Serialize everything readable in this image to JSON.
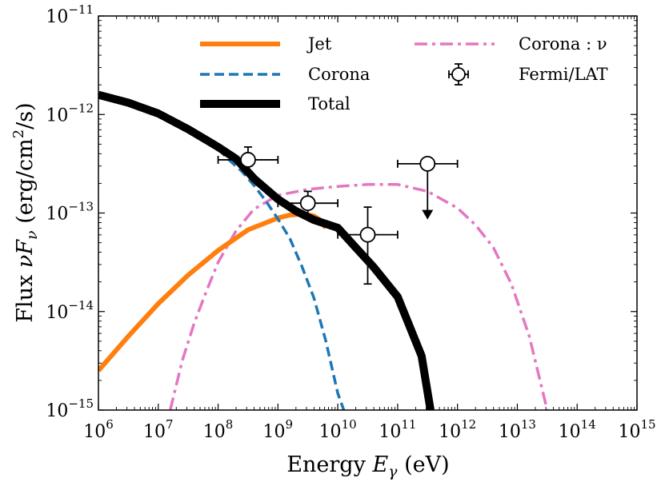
{
  "chart_data": {
    "type": "line",
    "title": "",
    "xlabel": "Energy E_γ (eV)",
    "xlabel_parts": {
      "pre": "Energy ",
      "sym": "E",
      "sub": "γ",
      "post": " (eV)"
    },
    "ylabel": "Flux νF_ν (erg/cm²/s)",
    "ylabel_parts": {
      "pre": "Flux ",
      "sym": "νF",
      "sub": "ν",
      "post": " (erg/cm",
      "sup": "2",
      "post2": "/s)"
    },
    "xscale": "log",
    "yscale": "log",
    "xlim": [
      1000000.0,
      1000000000000000.0
    ],
    "ylim": [
      1e-15,
      1e-11
    ],
    "x_ticks": [
      6,
      7,
      8,
      9,
      10,
      11,
      12,
      13,
      14,
      15
    ],
    "x_tick_labels": [
      {
        "base": "10",
        "exp": "6"
      },
      {
        "base": "10",
        "exp": "7"
      },
      {
        "base": "10",
        "exp": "8"
      },
      {
        "base": "10",
        "exp": "9"
      },
      {
        "base": "10",
        "exp": "10"
      },
      {
        "base": "10",
        "exp": "11"
      },
      {
        "base": "10",
        "exp": "12"
      },
      {
        "base": "10",
        "exp": "13"
      },
      {
        "base": "10",
        "exp": "14"
      },
      {
        "base": "10",
        "exp": "15"
      }
    ],
    "y_ticks": [
      -15,
      -14,
      -13,
      -12,
      -11
    ],
    "y_tick_labels": [
      {
        "base": "10",
        "exp": "−15"
      },
      {
        "base": "10",
        "exp": "−14"
      },
      {
        "base": "10",
        "exp": "−13"
      },
      {
        "base": "10",
        "exp": "−12"
      },
      {
        "base": "10",
        "exp": "−11"
      }
    ],
    "grid": false,
    "legend_position": "top",
    "legend": [
      {
        "key": "jet",
        "label": "Jet"
      },
      {
        "key": "corona",
        "label": "Corona"
      },
      {
        "key": "total",
        "label": "Total"
      },
      {
        "key": "nu",
        "label": "Corona : ν"
      },
      {
        "key": "fermi",
        "label": "Fermi/LAT"
      }
    ],
    "series": [
      {
        "name": "Jet",
        "key": "jet",
        "color": "#ff7f0e",
        "style": "solid",
        "log_x": [
          6.0,
          6.5,
          7.0,
          7.5,
          8.0,
          8.5,
          9.0,
          9.2,
          9.4,
          9.6,
          9.7,
          9.8
        ],
        "log_y": [
          -14.6,
          -14.25,
          -13.92,
          -13.63,
          -13.38,
          -13.17,
          -13.05,
          -13.02,
          -13.01,
          -13.03,
          -13.07,
          -13.15
        ]
      },
      {
        "name": "Corona",
        "key": "corona",
        "color": "#1f77b4",
        "style": "dashed",
        "log_x": [
          8.0,
          8.2,
          8.4,
          8.6,
          8.8,
          9.0,
          9.2,
          9.4,
          9.6,
          9.8,
          10.0,
          10.1
        ],
        "log_y": [
          -12.35,
          -12.47,
          -12.58,
          -12.72,
          -12.88,
          -13.06,
          -13.26,
          -13.54,
          -13.86,
          -14.3,
          -14.83,
          -15.0
        ]
      },
      {
        "name": "Total",
        "key": "total",
        "color": "#000000",
        "style": "solid",
        "log_x": [
          6.0,
          6.5,
          7.0,
          7.5,
          8.0,
          8.3,
          8.6,
          9.0,
          9.3,
          9.6,
          10.0,
          10.3,
          10.6,
          11.0,
          11.4,
          11.55
        ],
        "log_y": [
          -11.8,
          -11.88,
          -11.99,
          -12.15,
          -12.33,
          -12.45,
          -12.65,
          -12.86,
          -12.98,
          -13.07,
          -13.15,
          -13.35,
          -13.55,
          -13.85,
          -14.45,
          -15.0
        ]
      },
      {
        "name": "Corona : ν",
        "key": "nu",
        "color": "#e377c2",
        "style": "dashdot",
        "log_x": [
          7.2,
          7.4,
          7.6,
          7.8,
          8.0,
          8.3,
          8.6,
          9.0,
          9.5,
          10.0,
          10.5,
          11.0,
          11.5,
          12.0,
          12.3,
          12.6,
          12.9,
          13.2,
          13.5
        ],
        "log_y": [
          -15.0,
          -14.5,
          -14.12,
          -13.8,
          -13.5,
          -13.18,
          -12.96,
          -12.82,
          -12.76,
          -12.73,
          -12.71,
          -12.71,
          -12.78,
          -12.95,
          -13.12,
          -13.35,
          -13.72,
          -14.25,
          -15.0
        ]
      }
    ],
    "fermi_points": [
      {
        "log_x": 8.5,
        "log_y": -12.46,
        "log_x_err": [
          8.0,
          9.0
        ],
        "log_y_err": [
          -12.59,
          -12.33
        ],
        "upper_limit": false
      },
      {
        "log_x": 9.5,
        "log_y": -12.9,
        "log_x_err": [
          9.0,
          10.0
        ],
        "log_y_err": [
          -13.02,
          -12.78
        ],
        "upper_limit": false
      },
      {
        "log_x": 10.5,
        "log_y": -13.22,
        "log_x_err": [
          10.0,
          11.0
        ],
        "log_y_err": [
          -13.72,
          -12.94
        ],
        "upper_limit": false
      },
      {
        "log_x": 11.5,
        "log_y": -12.5,
        "log_x_err": [
          11.0,
          12.0
        ],
        "log_y_err": [
          -13.05,
          -12.5
        ],
        "upper_limit": true
      }
    ]
  }
}
